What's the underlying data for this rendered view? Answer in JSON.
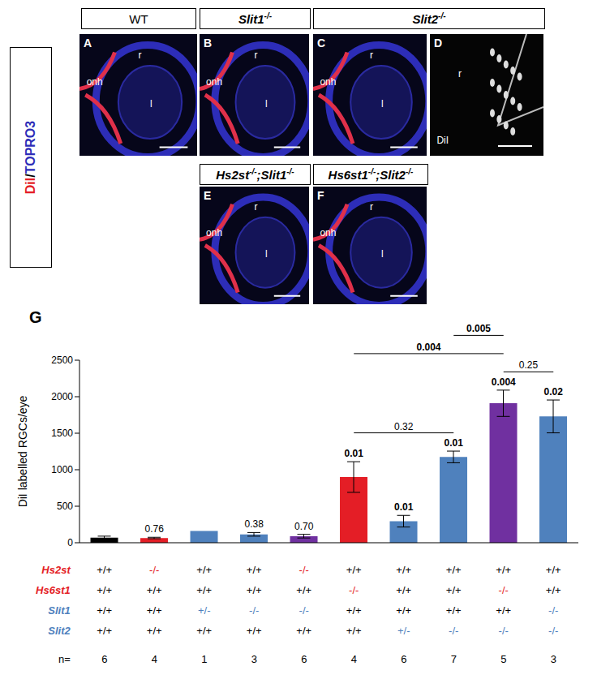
{
  "panels": {
    "side_label": "DiI/TOPRO3",
    "headers": [
      [
        {
          "text": "WT"
        }
      ],
      [
        {
          "text": "Slit1",
          "sup": "-/-"
        }
      ],
      [
        {
          "text": "Slit2",
          "sup": "-/-"
        }
      ],
      [
        {
          "text": "Hs2st",
          "sup": "-/-"
        },
        {
          "text": ";Slit1",
          "sup": "-/-"
        }
      ],
      [
        {
          "text": "Hs6st1",
          "sup": "-/-"
        },
        {
          "text": ";Slit2",
          "sup": "-/-"
        }
      ]
    ],
    "images": [
      {
        "letter": "A",
        "labels": [
          "r",
          "onh",
          "l"
        ]
      },
      {
        "letter": "B",
        "labels": [
          "r",
          "onh",
          "l"
        ]
      },
      {
        "letter": "C",
        "labels": [
          "r",
          "onh",
          "l"
        ]
      },
      {
        "letter": "D",
        "labels": [
          "r",
          "DiI"
        ]
      },
      {
        "letter": "E",
        "labels": [
          "r",
          "onh",
          "l"
        ]
      },
      {
        "letter": "F",
        "labels": [
          "r",
          "onh",
          "l"
        ]
      }
    ]
  },
  "chart_data": {
    "type": "bar",
    "panel": "G",
    "y_label": "DiI labelled RGCs/eye",
    "categories": [
      null,
      null,
      null,
      null,
      null,
      null,
      null,
      null,
      null,
      null
    ],
    "values": [
      70,
      65,
      160,
      115,
      90,
      900,
      295,
      1175,
      1910,
      1730
    ],
    "errors": [
      20,
      10,
      0,
      25,
      25,
      210,
      80,
      80,
      180,
      225
    ],
    "colors": [
      "#000000",
      "#e41e26",
      "#4f81bd",
      "#4f81bd",
      "#7030a0",
      "#e41e26",
      "#4f81bd",
      "#4f81bd",
      "#7030a0",
      "#4f81bd"
    ],
    "ylim": [
      0,
      2500
    ],
    "yticks": [
      0,
      500,
      1000,
      1500,
      2000,
      2500
    ],
    "grid": false,
    "p_values": [
      null,
      {
        "text": "0.76",
        "bold": false
      },
      null,
      {
        "text": "0.38",
        "bold": false
      },
      {
        "text": "0.70",
        "bold": false
      },
      {
        "text": "0.01",
        "bold": true
      },
      {
        "text": "0.01",
        "bold": true
      },
      {
        "text": "0.01",
        "bold": true
      },
      {
        "text": "0.004",
        "bold": true
      },
      {
        "text": "0.02",
        "bold": true
      }
    ],
    "comparisons": [
      {
        "from": 5,
        "to": 7,
        "text": "0.32",
        "bold": false
      },
      {
        "from": 8,
        "to": 9,
        "text": "0.25",
        "bold": false
      },
      {
        "from": 5,
        "to": 8,
        "text": "0.004",
        "bold": true
      },
      {
        "from": 7,
        "to": 8,
        "text": "0.005",
        "bold": true
      }
    ],
    "genotype_table": {
      "rows": [
        {
          "gene": "Hs2st",
          "color": "#e41e26",
          "values": [
            "+/+",
            "-/-",
            "+/+",
            "+/+",
            "-/-",
            "+/+",
            "+/+",
            "+/+",
            "+/+",
            "+/+"
          ]
        },
        {
          "gene": "Hs6st1",
          "color": "#e41e26",
          "values": [
            "+/+",
            "+/+",
            "+/+",
            "+/+",
            "+/+",
            "-/-",
            "+/+",
            "+/+",
            "-/-",
            "+/+"
          ]
        },
        {
          "gene": "Slit1",
          "color": "#4f81bd",
          "values": [
            "+/+",
            "+/+",
            "+/-",
            "-/-",
            "-/-",
            "+/+",
            "+/+",
            "+/+",
            "+/+",
            "-/-"
          ]
        },
        {
          "gene": "Slit2",
          "color": "#4f81bd",
          "values": [
            "+/+",
            "+/+",
            "+/+",
            "+/+",
            "+/+",
            "+/+",
            "+/-",
            "-/-",
            "-/-",
            "-/-"
          ]
        }
      ],
      "n_label": "n=",
      "n": [
        6,
        4,
        1,
        3,
        6,
        4,
        6,
        7,
        5,
        3
      ]
    }
  }
}
